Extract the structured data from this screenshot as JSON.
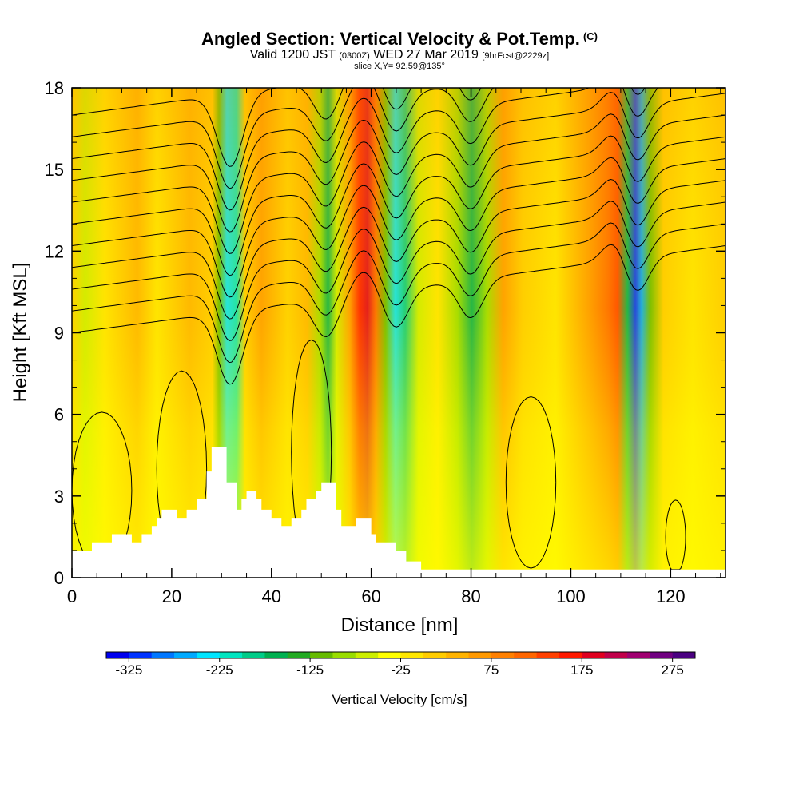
{
  "header": {
    "title": "Angled Section: Vertical Velocity & Pot.Temp.",
    "title_mark": "(C)",
    "subtitle_a": "Valid 1200 JST",
    "subtitle_b": "(0300Z)",
    "subtitle_c": "WED 27 Mar 2019",
    "subtitle_d": "[9hrFcst@2229z]",
    "slice": "slice X,Y= 92,59@135°"
  },
  "chart_data": {
    "type": "heatmap",
    "title": "Angled Section: Vertical Velocity & Pot.Temp.",
    "xlabel": "Distance [nm]",
    "ylabel": "Height [Kft MSL]",
    "xlim": [
      0,
      131
    ],
    "ylim": [
      0,
      18
    ],
    "x_ticks": [
      0,
      20,
      40,
      60,
      80,
      100,
      120
    ],
    "x_tick_labels": [
      "0",
      "20",
      "40",
      "60",
      "80",
      "100",
      "120"
    ],
    "y_ticks": [
      0,
      3,
      6,
      9,
      12,
      15,
      18
    ],
    "y_tick_labels": [
      "0",
      "3",
      "6",
      "9",
      "12",
      "15",
      "18"
    ],
    "colorbar": {
      "title": "Vertical Velocity [cm/s]",
      "min": -350,
      "max": 300,
      "step": 25,
      "tick_values": [
        -325,
        -225,
        -125,
        -25,
        75,
        175,
        275
      ],
      "tick_labels": [
        "-325",
        "-225",
        "-125",
        "-25",
        "75",
        "175",
        "275"
      ],
      "colors": [
        "#0000ee",
        "#0033ff",
        "#0077ff",
        "#00aaff",
        "#00e5ff",
        "#00e5c0",
        "#00cc88",
        "#00b050",
        "#22aa22",
        "#66bb00",
        "#99dd00",
        "#ccee00",
        "#ffff00",
        "#ffe600",
        "#ffcc00",
        "#ffb300",
        "#ff9900",
        "#ff8000",
        "#ff6600",
        "#ff4000",
        "#ff1a00",
        "#e00020",
        "#c0004a",
        "#a00070",
        "#700080",
        "#4a0080"
      ]
    },
    "vertical_velocity_bands": [
      {
        "x": 31,
        "value": -225
      },
      {
        "x": 32.5,
        "value": -200
      },
      {
        "x": 51,
        "value": -125
      },
      {
        "x": 58.5,
        "value": 175
      },
      {
        "x": 65,
        "value": -200
      },
      {
        "x": 80,
        "value": -125
      },
      {
        "x": 109,
        "value": 175
      },
      {
        "x": 113,
        "value": -300
      }
    ],
    "terrain": [
      [
        0,
        1
      ],
      [
        4,
        1
      ],
      [
        4,
        1.3
      ],
      [
        8,
        1.3
      ],
      [
        8,
        1.6
      ],
      [
        12,
        1.6
      ],
      [
        12,
        1.3
      ],
      [
        14,
        1.3
      ],
      [
        14,
        1.6
      ],
      [
        16,
        1.6
      ],
      [
        16,
        1.9
      ],
      [
        17,
        1.9
      ],
      [
        17,
        2.2
      ],
      [
        18,
        2.2
      ],
      [
        18,
        2.5
      ],
      [
        21,
        2.5
      ],
      [
        21,
        2.2
      ],
      [
        23,
        2.2
      ],
      [
        23,
        2.5
      ],
      [
        25,
        2.5
      ],
      [
        25,
        2.9
      ],
      [
        27,
        2.9
      ],
      [
        27,
        3.9
      ],
      [
        28,
        3.9
      ],
      [
        28,
        4.8
      ],
      [
        31,
        4.8
      ],
      [
        31,
        3.5
      ],
      [
        33,
        3.5
      ],
      [
        33,
        2.5
      ],
      [
        34,
        2.5
      ],
      [
        34,
        2.9
      ],
      [
        35,
        2.9
      ],
      [
        35,
        3.2
      ],
      [
        37,
        3.2
      ],
      [
        37,
        2.9
      ],
      [
        38,
        2.9
      ],
      [
        38,
        2.5
      ],
      [
        40,
        2.5
      ],
      [
        40,
        2.2
      ],
      [
        42,
        2.2
      ],
      [
        42,
        1.9
      ],
      [
        44,
        1.9
      ],
      [
        44,
        2.2
      ],
      [
        46,
        2.2
      ],
      [
        46,
        2.5
      ],
      [
        47,
        2.5
      ],
      [
        47,
        2.9
      ],
      [
        49,
        2.9
      ],
      [
        49,
        3.2
      ],
      [
        50,
        3.2
      ],
      [
        50,
        3.5
      ],
      [
        53,
        3.5
      ],
      [
        53,
        2.5
      ],
      [
        54,
        2.5
      ],
      [
        54,
        1.9
      ],
      [
        57,
        1.9
      ],
      [
        57,
        2.2
      ],
      [
        60,
        2.2
      ],
      [
        60,
        1.6
      ],
      [
        61,
        1.6
      ],
      [
        61,
        1.3
      ],
      [
        65,
        1.3
      ],
      [
        65,
        1
      ],
      [
        67,
        1
      ],
      [
        67,
        0.6
      ],
      [
        70,
        0.6
      ],
      [
        70,
        0.3
      ],
      [
        131,
        0.3
      ]
    ]
  }
}
